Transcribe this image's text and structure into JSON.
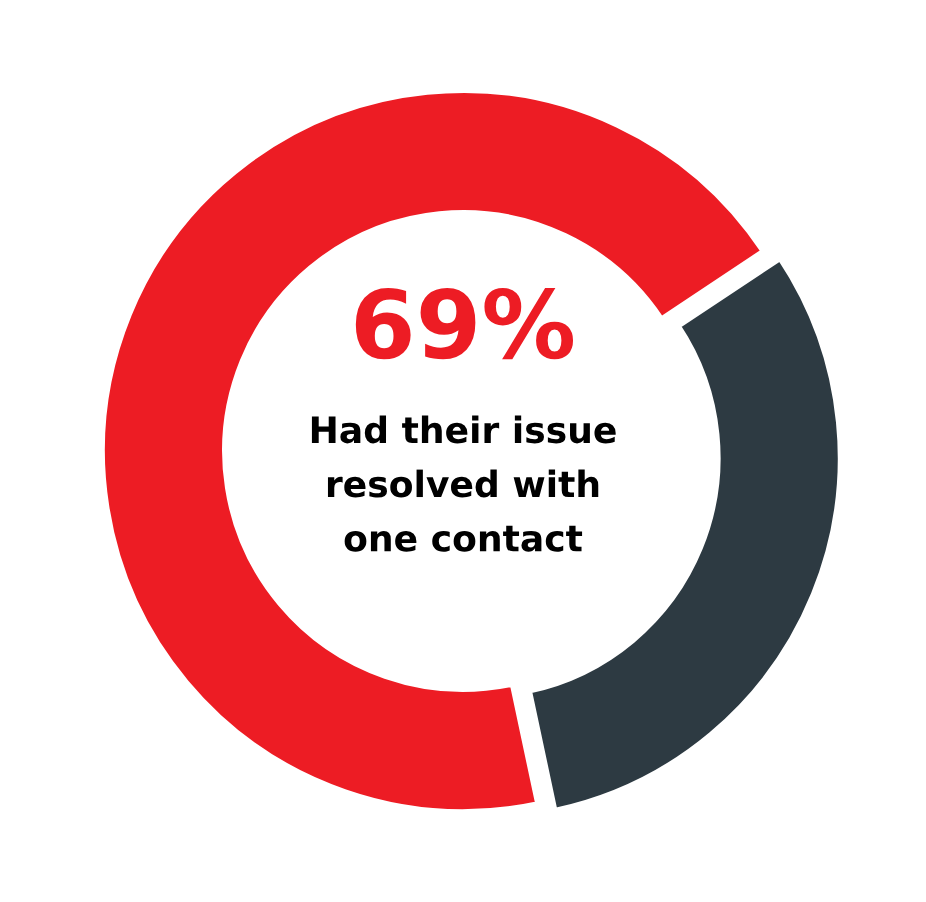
{
  "chart_data": {
    "type": "donut",
    "categories": [
      null,
      null
    ],
    "values": [
      69,
      31
    ],
    "colors": [
      "#ed1c24",
      "#2d3a42"
    ],
    "annotations": [
      "69%",
      "Had their issue\nresolved with\none contact"
    ]
  }
}
